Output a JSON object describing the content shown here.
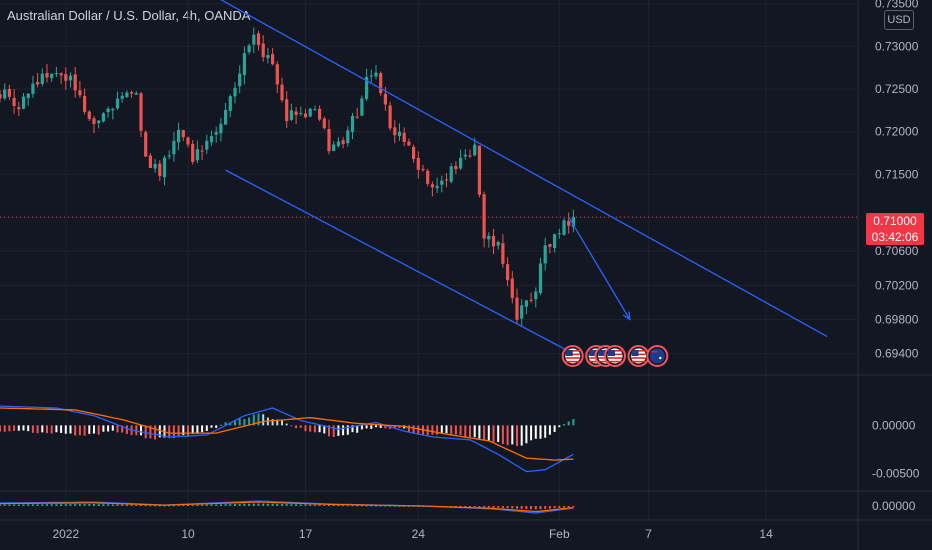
{
  "header": {
    "title": "Australian Dollar / U.S. Dollar, 4h, OANDA",
    "currency_badge": "USD"
  },
  "price_tag": {
    "price": "0.71000",
    "countdown": "03:42:06"
  },
  "colors": {
    "background": "#131722",
    "up": "#26a69a",
    "down": "#ef5350",
    "trendline": "#2962ff",
    "macd_line": "#2962ff",
    "signal_line": "#ff6d00",
    "price_tag": "#f23645"
  },
  "chart_data": [
    {
      "type": "candlestick",
      "title": "Australian Dollar / U.S. Dollar, 4h, OANDA",
      "ylim": [
        0.6922,
        0.7352
      ],
      "y_ticks": [
        "0.73500",
        "0.73000",
        "0.72500",
        "0.72000",
        "0.71500",
        "0.71000",
        "0.70600",
        "0.70200",
        "0.69800",
        "0.69400"
      ],
      "x_ticks": [
        "2022",
        "10",
        "17",
        "24",
        "Feb",
        "7",
        "14"
      ],
      "last_price": 0.71,
      "anchors": [
        {
          "t": 0,
          "p": 0.7245
        },
        {
          "t": 4,
          "p": 0.7232
        },
        {
          "t": 8,
          "p": 0.7262
        },
        {
          "t": 12,
          "p": 0.727
        },
        {
          "t": 15,
          "p": 0.7262
        },
        {
          "t": 19,
          "p": 0.7212
        },
        {
          "t": 24,
          "p": 0.7232
        },
        {
          "t": 27,
          "p": 0.725
        },
        {
          "t": 29,
          "p": 0.7238
        },
        {
          "t": 31,
          "p": 0.7168
        },
        {
          "t": 34,
          "p": 0.7155
        },
        {
          "t": 38,
          "p": 0.72
        },
        {
          "t": 41,
          "p": 0.7172
        },
        {
          "t": 44,
          "p": 0.719
        },
        {
          "t": 46,
          "p": 0.7205
        },
        {
          "t": 49,
          "p": 0.724
        },
        {
          "t": 52,
          "p": 0.7285
        },
        {
          "t": 54,
          "p": 0.731
        },
        {
          "t": 56,
          "p": 0.729
        },
        {
          "t": 58,
          "p": 0.728
        },
        {
          "t": 61,
          "p": 0.722
        },
        {
          "t": 64,
          "p": 0.7225
        },
        {
          "t": 67,
          "p": 0.7225
        },
        {
          "t": 70,
          "p": 0.7185
        },
        {
          "t": 73,
          "p": 0.7192
        },
        {
          "t": 76,
          "p": 0.7222
        },
        {
          "t": 78,
          "p": 0.726
        },
        {
          "t": 80,
          "p": 0.727
        },
        {
          "t": 83,
          "p": 0.721
        },
        {
          "t": 87,
          "p": 0.7185
        },
        {
          "t": 90,
          "p": 0.715
        },
        {
          "t": 92,
          "p": 0.713
        },
        {
          "t": 95,
          "p": 0.715
        },
        {
          "t": 99,
          "p": 0.7172
        },
        {
          "t": 101,
          "p": 0.718
        },
        {
          "t": 103,
          "p": 0.708
        },
        {
          "t": 106,
          "p": 0.707
        },
        {
          "t": 108,
          "p": 0.7025
        },
        {
          "t": 110,
          "p": 0.6985
        },
        {
          "t": 112,
          "p": 0.6995
        },
        {
          "t": 114,
          "p": 0.702
        },
        {
          "t": 116,
          "p": 0.7065
        },
        {
          "t": 118,
          "p": 0.7075
        },
        {
          "t": 120,
          "p": 0.709
        },
        {
          "t": 122,
          "p": 0.71
        }
      ],
      "trendlines": [
        {
          "name": "upper-trendline",
          "from": {
            "t": 42,
            "p": 0.737
          },
          "to": {
            "t": 176,
            "p": 0.696
          }
        },
        {
          "name": "lower-trendline",
          "from": {
            "t": 48,
            "p": 0.7155
          },
          "to": {
            "t": 122,
            "p": 0.694
          }
        }
      ],
      "projection": {
        "from": {
          "t": 121,
          "p": 0.71
        },
        "to": {
          "t": 134,
          "p": 0.698
        }
      },
      "event_markers": [
        {
          "t": 121,
          "flag": "US"
        },
        {
          "t": 126,
          "flag": "US"
        },
        {
          "t": 128,
          "flag": "US"
        },
        {
          "t": 130,
          "flag": "US"
        },
        {
          "t": 135,
          "flag": "US"
        },
        {
          "t": 139,
          "flag": "AU"
        }
      ]
    },
    {
      "type": "histogram_line",
      "name": "MACD",
      "ylim": [
        -0.0065,
        0.0045
      ],
      "y_ticks": [
        "0.00000",
        "-0.00500"
      ],
      "histogram_anchors": [
        {
          "t": 0,
          "v": -0.0005
        },
        {
          "t": 10,
          "v": -0.0008
        },
        {
          "t": 18,
          "v": -0.001
        },
        {
          "t": 25,
          "v": -0.0006
        },
        {
          "t": 32,
          "v": -0.0014
        },
        {
          "t": 40,
          "v": -0.0011
        },
        {
          "t": 48,
          "v": 0.0002
        },
        {
          "t": 55,
          "v": 0.0012
        },
        {
          "t": 60,
          "v": 0.0005
        },
        {
          "t": 65,
          "v": -0.0006
        },
        {
          "t": 72,
          "v": -0.0012
        },
        {
          "t": 78,
          "v": -0.0004
        },
        {
          "t": 84,
          "v": -0.0002
        },
        {
          "t": 90,
          "v": -0.001
        },
        {
          "t": 96,
          "v": -0.0008
        },
        {
          "t": 103,
          "v": -0.0016
        },
        {
          "t": 110,
          "v": -0.0022
        },
        {
          "t": 116,
          "v": -0.0012
        },
        {
          "t": 122,
          "v": 0.0006
        }
      ],
      "macd_anchors": [
        {
          "t": 0,
          "v": 0.002
        },
        {
          "t": 12,
          "v": 0.0018
        },
        {
          "t": 20,
          "v": 0.001
        },
        {
          "t": 28,
          "v": -0.0005
        },
        {
          "t": 36,
          "v": -0.0012
        },
        {
          "t": 44,
          "v": -0.001
        },
        {
          "t": 52,
          "v": 0.001
        },
        {
          "t": 58,
          "v": 0.0018
        },
        {
          "t": 64,
          "v": 0.0005
        },
        {
          "t": 72,
          "v": -0.0004
        },
        {
          "t": 80,
          "v": 0.0003
        },
        {
          "t": 86,
          "v": -0.0006
        },
        {
          "t": 92,
          "v": -0.0012
        },
        {
          "t": 100,
          "v": -0.0015
        },
        {
          "t": 106,
          "v": -0.003
        },
        {
          "t": 112,
          "v": -0.0048
        },
        {
          "t": 116,
          "v": -0.0046
        },
        {
          "t": 122,
          "v": -0.003
        }
      ],
      "signal_anchors": [
        {
          "t": 0,
          "v": 0.0018
        },
        {
          "t": 16,
          "v": 0.0016
        },
        {
          "t": 26,
          "v": 0.0006
        },
        {
          "t": 36,
          "v": -0.0008
        },
        {
          "t": 46,
          "v": -0.0008
        },
        {
          "t": 56,
          "v": 0.0004
        },
        {
          "t": 66,
          "v": 0.0008
        },
        {
          "t": 76,
          "v": 0.0002
        },
        {
          "t": 86,
          "v": -0.0001
        },
        {
          "t": 96,
          "v": -0.001
        },
        {
          "t": 104,
          "v": -0.0016
        },
        {
          "t": 112,
          "v": -0.0034
        },
        {
          "t": 118,
          "v": -0.0036
        },
        {
          "t": 122,
          "v": -0.0035
        }
      ]
    },
    {
      "type": "histogram_line",
      "name": "oscillator",
      "ylim": [
        -0.0012,
        0.0012
      ],
      "y_ticks": [
        "0.00000"
      ],
      "line_anchors": [
        {
          "t": 0,
          "v": 0.0003
        },
        {
          "t": 20,
          "v": 0.0004
        },
        {
          "t": 35,
          "v": 0.0001
        },
        {
          "t": 55,
          "v": 0.0005
        },
        {
          "t": 70,
          "v": 0.0002
        },
        {
          "t": 90,
          "v": 0.0
        },
        {
          "t": 105,
          "v": -0.0003
        },
        {
          "t": 114,
          "v": -0.0007
        },
        {
          "t": 122,
          "v": -0.0002
        }
      ]
    }
  ]
}
